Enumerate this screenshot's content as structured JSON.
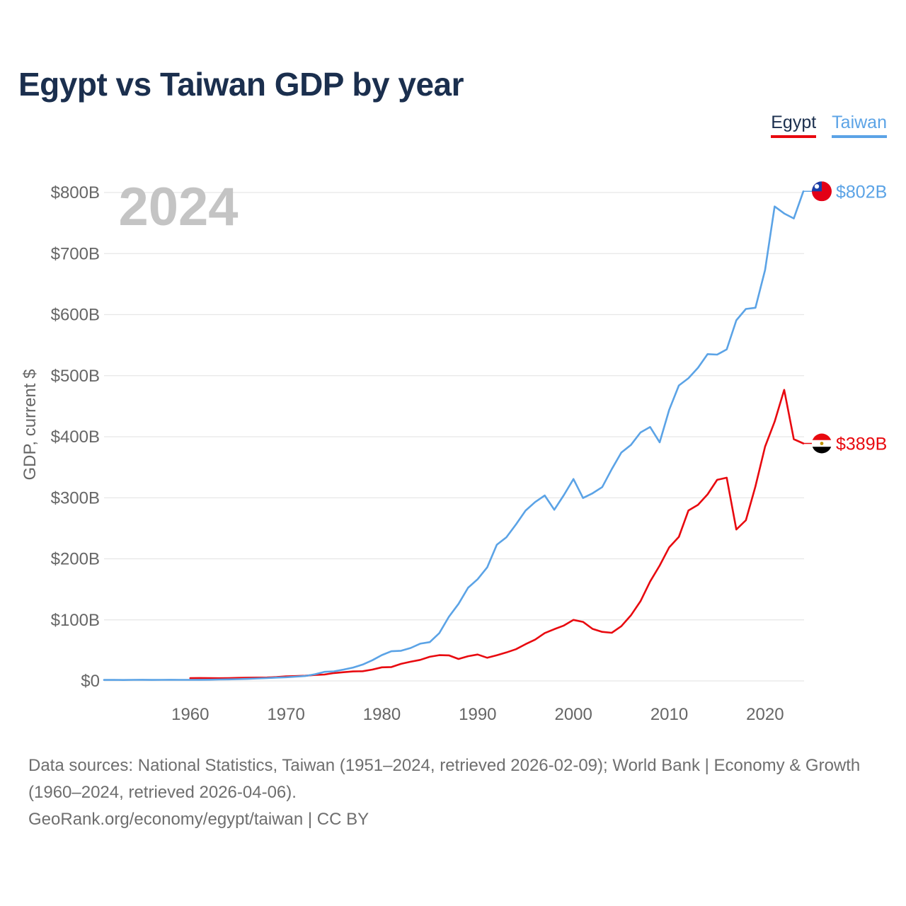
{
  "chart_data": {
    "type": "line",
    "title": "Egypt vs Taiwan GDP by year",
    "ylabel": "GDP, current $",
    "xlabel": "",
    "year_label": "2024",
    "xlim": [
      1951,
      2024
    ],
    "ylim": [
      0,
      800
    ],
    "yunit": "billion US$",
    "x_ticks": [
      1960,
      1970,
      1980,
      1990,
      2000,
      2010,
      2020
    ],
    "x_tick_labels": [
      "1960",
      "1970",
      "1980",
      "1990",
      "2000",
      "2010",
      "2020"
    ],
    "y_ticks": [
      0,
      100,
      200,
      300,
      400,
      500,
      600,
      700,
      800
    ],
    "y_tick_labels": [
      "$0",
      "$100B",
      "$200B",
      "$300B",
      "$400B",
      "$500B",
      "$600B",
      "$700B",
      "$800B"
    ],
    "legend": [
      "Egypt",
      "Taiwan"
    ],
    "grid": true,
    "series": [
      {
        "name": "Egypt",
        "color": "#e8090f",
        "end_label": "$389B",
        "start_year": 1960,
        "values": [
          4.5,
          4.8,
          4.5,
          4.4,
          4.6,
          5.0,
          5.3,
          5.5,
          5.6,
          6.3,
          7.5,
          7.9,
          8.5,
          9.7,
          10.4,
          12.9,
          14.3,
          15.5,
          15.9,
          18.5,
          22.3,
          22.7,
          28.0,
          31.4,
          34.4,
          39.5,
          42.2,
          41.8,
          36.0,
          40.5,
          43.3,
          37.9,
          42.1,
          46.6,
          51.9,
          60.2,
          67.6,
          78.4,
          84.8,
          90.7,
          100.0,
          96.7,
          85.2,
          80.3,
          78.8,
          89.6,
          107.5,
          130.5,
          162.8,
          189.0,
          218.9,
          236.0,
          279.1,
          288.4,
          305.6,
          329.4,
          332.9,
          248.0,
          263.2,
          318.7,
          383.8,
          424.7,
          476.7,
          395.9,
          389.0
        ]
      },
      {
        "name": "Taiwan",
        "color": "#5ba3e6",
        "end_label": "$802B",
        "start_year": 1951,
        "values": [
          1.6,
          1.7,
          1.5,
          1.7,
          1.9,
          1.6,
          1.7,
          1.9,
          1.7,
          1.7,
          1.8,
          2.0,
          2.3,
          2.6,
          2.9,
          3.4,
          4.0,
          4.6,
          5.4,
          6.0,
          6.9,
          8.0,
          10.9,
          14.8,
          15.7,
          18.6,
          21.9,
          26.8,
          33.9,
          42.3,
          48.6,
          49.4,
          53.9,
          61.0,
          63.5,
          78.4,
          105.1,
          126.2,
          152.6,
          166.6,
          186.2,
          223.1,
          235.3,
          256.4,
          279.0,
          293.0,
          303.8,
          280.4,
          304.4,
          330.7,
          299.6,
          307.4,
          317.4,
          346.9,
          374.0,
          386.5,
          406.9,
          415.9,
          390.8,
          444.3,
          483.9,
          495.8,
          512.9,
          535.3,
          534.5,
          543.1,
          590.7,
          609.3,
          611.3,
          673.2,
          777.2,
          765.7,
          757.6,
          802.0
        ]
      }
    ]
  },
  "footer": {
    "sources": "Data sources: National Statistics, Taiwan (1951–2024, retrieved 2026-02-09); World Bank | Economy & Growth (1960–2024, retrieved 2026-04-06).",
    "credit": "GeoRank.org/economy/egypt/taiwan | CC BY"
  }
}
